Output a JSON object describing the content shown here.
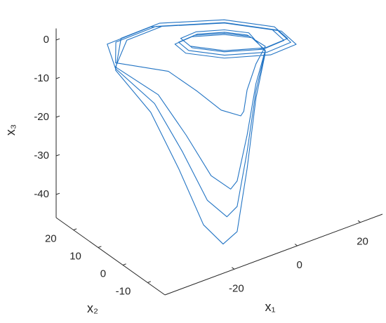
{
  "chart_data": {
    "type": "line3d",
    "xlabel": "x₁",
    "ylabel": "x₂",
    "zlabel": "x₃",
    "xlim": [
      -42,
      27
    ],
    "ylim": [
      -17,
      27
    ],
    "zlim": [
      -46,
      3
    ],
    "xticks": [
      -20,
      0,
      20
    ],
    "yticks": [
      -10,
      0,
      10,
      20
    ],
    "zticks": [
      -40,
      -30,
      -20,
      -10,
      0
    ],
    "color": "#2274c4",
    "x": [
      -0.55,
      -4.98,
      -11.78,
      -17.14,
      -17.47,
      -11.37,
      -1.62,
      6.2,
      6.97,
      -1.86,
      -17.16,
      -30.19,
      -35.4,
      -23.5,
      -18.7,
      -14.6,
      -10.5,
      -9.0,
      -7.0,
      -3.1,
      0.5,
      -1.3,
      -5.2,
      -11.4,
      -16.2,
      -16.5,
      -11.0,
      -2.2,
      4.8,
      5.5,
      -2.4,
      -16.2,
      -27.9,
      -35.4,
      -26.7,
      -21.9,
      -17.8,
      -13.7,
      -11.1,
      -7.0,
      -3.1,
      0.5,
      0.0,
      -4.8,
      -12.1,
      -17.9,
      -18.3,
      -11.7,
      -1.1,
      7.3,
      8.1,
      -1.4,
      -17.9,
      -32.0,
      -35.4,
      -27.9,
      -23.1,
      -19.0,
      -14.9,
      -11.1,
      -7.0,
      -3.1,
      0.5,
      -0.9,
      -5.1,
      -11.6,
      -16.7,
      -17.0,
      -11.2,
      -1.9,
      5.5,
      6.2,
      -2.2,
      -16.7,
      -29.1,
      -35.4,
      -29.1,
      -24.3,
      -20.2,
      -16.1,
      -11.1,
      -7.0,
      -3.1,
      0.5
    ],
    "y": [
      1.46,
      6.16,
      9.56,
      9.18,
      4.67,
      -2.03,
      -6.85,
      -6.44,
      0.04,
      10.15,
      18.24,
      17.92,
      11.4,
      5.2,
      0.0,
      -4.8,
      -7.5,
      -6.8,
      -5.6,
      -4.2,
      -3.4,
      1.6,
      5.8,
      8.9,
      8.5,
      4.5,
      -1.5,
      -5.9,
      -5.5,
      0.3,
      9.4,
      16.7,
      16.4,
      11.4,
      5.2,
      0.0,
      -4.8,
      -7.5,
      -6.8,
      -5.6,
      -4.2,
      -3.4,
      1.4,
      6.4,
      10.1,
      9.7,
      4.8,
      -2.4,
      -7.6,
      -7.2,
      -0.2,
      10.7,
      19.5,
      19.1,
      11.4,
      5.2,
      0.0,
      -4.8,
      -7.5,
      -6.8,
      -5.6,
      -4.2,
      -3.4,
      1.5,
      6.0,
      9.2,
      8.9,
      4.6,
      -1.8,
      -6.4,
      -6.0,
      0.2,
      9.8,
      17.5,
      17.2,
      11.4,
      5.2,
      0.0,
      -4.8,
      -7.5,
      -6.8,
      -5.6,
      -4.2,
      -3.4
    ],
    "z": [
      0,
      0,
      0,
      0,
      0,
      0,
      0,
      0,
      0,
      0,
      0,
      0,
      -0.8,
      -3.8,
      -7.9,
      -12.0,
      -13.5,
      -13.1,
      -8.7,
      -3.8,
      -0.7,
      0.5,
      0.5,
      0.5,
      0.5,
      0.5,
      0.5,
      0.5,
      0.5,
      0.5,
      0.5,
      0.5,
      0.5,
      -1.9,
      -8.9,
      -18.5,
      -28.0,
      -31.5,
      -30.5,
      -20.4,
      -8.9,
      -1.7,
      -0.5,
      -0.5,
      -0.5,
      -0.5,
      -0.5,
      -0.5,
      -0.5,
      -0.5,
      -0.5,
      -0.5,
      -0.5,
      -0.5,
      -2.3,
      -10.8,
      -22.4,
      -34.0,
      -38.3,
      -37.1,
      -24.7,
      -10.8,
      -2.0,
      1,
      1,
      1,
      1,
      1,
      1,
      1,
      1,
      1,
      1,
      1,
      1,
      -2.7,
      -12.7,
      -26.4,
      -40,
      -45,
      -43.6,
      -29.1,
      -12.7,
      -2.4
    ]
  }
}
